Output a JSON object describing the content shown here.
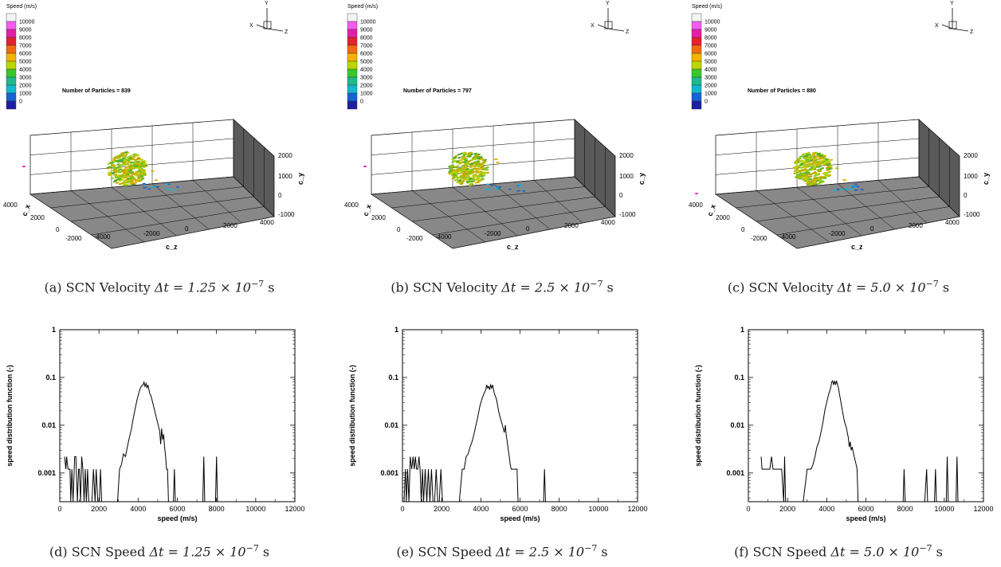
{
  "particle_plots": [
    {
      "legend_title": "Speed (m/s)",
      "legend_ticks": [
        "10000",
        "9000",
        "8000",
        "7000",
        "6000",
        "5000",
        "4000",
        "3000",
        "2000",
        "1000",
        "0"
      ],
      "legend_colors": [
        "#f4f4f4",
        "#f45cf0",
        "#e51fa5",
        "#e5202f",
        "#f46a12",
        "#f4b300",
        "#bcd600",
        "#38c82b",
        "#1fb98b",
        "#12b8d0",
        "#1563d6",
        "#1c1fa4"
      ],
      "number_label": "Number of Particles = 839",
      "axes": {
        "x_title": "c_x",
        "z_title": "c_z",
        "y_title": "c_y",
        "x_ticks": [
          "4000",
          "2000",
          "0",
          "-2000"
        ],
        "z_ticks": [
          "-4000",
          "-2000",
          "0",
          "2000",
          "4000"
        ],
        "y_ticks": [
          "2000",
          "1000",
          "0",
          "-1000"
        ]
      },
      "triad": {
        "x": "X",
        "y": "Y",
        "z": "Z"
      },
      "caption_prefix": "(a) SCN Velocity",
      "caption_math": "Δt = 1.25 × 10",
      "caption_exp": "−7",
      "caption_unit": "s"
    },
    {
      "legend_title": "Speed (m/s)",
      "legend_ticks": [
        "10000",
        "9000",
        "8000",
        "7000",
        "6000",
        "5000",
        "4000",
        "3000",
        "2000",
        "1000",
        "0"
      ],
      "legend_colors": [
        "#f4f4f4",
        "#f45cf0",
        "#e51fa5",
        "#e5202f",
        "#f46a12",
        "#f4b300",
        "#bcd600",
        "#38c82b",
        "#1fb98b",
        "#12b8d0",
        "#1563d6",
        "#1c1fa4"
      ],
      "number_label": "Number of Particles = 797",
      "axes": {
        "x_title": "c_x",
        "z_title": "c_z",
        "y_title": "c_y",
        "x_ticks": [
          "4000",
          "2000",
          "0",
          "-2000"
        ],
        "z_ticks": [
          "-4000",
          "-2000",
          "0",
          "2000",
          "4000"
        ],
        "y_ticks": [
          "2000",
          "1000",
          "0",
          "-1000"
        ]
      },
      "triad": {
        "x": "X",
        "y": "Y",
        "z": "Z"
      },
      "caption_prefix": "(b) SCN Velocity",
      "caption_math": "Δt = 2.5 × 10",
      "caption_exp": "−7",
      "caption_unit": "s"
    },
    {
      "legend_title": "Speed (m/s)",
      "legend_ticks": [
        "10000",
        "9000",
        "8000",
        "7000",
        "6000",
        "5000",
        "4000",
        "3000",
        "2000",
        "1000",
        "0"
      ],
      "legend_colors": [
        "#f4f4f4",
        "#f45cf0",
        "#e51fa5",
        "#e5202f",
        "#f46a12",
        "#f4b300",
        "#bcd600",
        "#38c82b",
        "#1fb98b",
        "#12b8d0",
        "#1563d6",
        "#1c1fa4"
      ],
      "number_label": "Number of Particles = 880",
      "axes": {
        "x_title": "c_x",
        "z_title": "c_z",
        "y_title": "c_y",
        "x_ticks": [
          "4000",
          "2000",
          "0",
          "-2000"
        ],
        "z_ticks": [
          "-4000",
          "-2000",
          "0",
          "2000",
          "4000"
        ],
        "y_ticks": [
          "2000",
          "1000",
          "0",
          "-1000"
        ]
      },
      "triad": {
        "x": "X",
        "y": "Y",
        "z": "Z"
      },
      "caption_prefix": "(c) SCN Velocity",
      "caption_math": "Δt = 5.0 × 10",
      "caption_exp": "−7",
      "caption_unit": "s"
    }
  ],
  "chart_data": [
    {
      "type": "line",
      "xlabel": "speed (m/s)",
      "ylabel": "speed distribution function (-)",
      "xlim": [
        0,
        12000
      ],
      "ylim": [
        0.00025,
        1
      ],
      "y_scale": "log",
      "x_ticks": [
        "0",
        "2000",
        "4000",
        "6000",
        "8000",
        "10000",
        "12000"
      ],
      "y_ticks": [
        "1",
        "0.1",
        "0.01",
        "0.001"
      ],
      "caption_prefix": "(d) SCN Speed",
      "caption_math": "Δt = 1.25 × 10",
      "caption_exp": "−7",
      "caption_unit": "s",
      "series": [
        {
          "x": [
            250,
            310,
            350,
            420,
            520,
            560,
            620,
            680,
            760,
            820,
            900,
            960,
            1000,
            1060,
            1120,
            1180,
            1240,
            1300,
            1360,
            1420,
            1480,
            1560,
            1640,
            1720,
            1800,
            1860,
            1940,
            2020,
            2080,
            2140,
            2200,
            2400,
            2600,
            2800,
            2950,
            3050,
            3150,
            3250,
            3350,
            3450,
            3550,
            3650,
            3750,
            3850,
            3950,
            4050,
            4150,
            4250,
            4300,
            4350,
            4400,
            4450,
            4500,
            4550,
            4600,
            4650,
            4700,
            4800,
            4900,
            5000,
            5100,
            5150,
            5200,
            5250,
            5300,
            5350,
            5400,
            5450,
            5500,
            5550,
            5600,
            5700,
            5800,
            5850,
            5900,
            5950,
            6000,
            6500,
            7000,
            7200,
            7300,
            7350,
            7400,
            7500,
            7800,
            7950,
            8000,
            8050,
            8100,
            8300,
            9000,
            10000,
            11000,
            12000
          ],
          "y": [
            0.0022,
            0.0012,
            0.0022,
            0.0012,
            0.0012,
            0.00025,
            0.0012,
            0.00025,
            0.0022,
            0.0022,
            0.00025,
            0.0012,
            0.0012,
            0.00025,
            0.0022,
            0.0012,
            0.00025,
            0.0012,
            0.00025,
            0.0012,
            0.00025,
            0.00025,
            0.00025,
            0.0012,
            0.00025,
            0.0012,
            0.00025,
            0.00025,
            0.0012,
            0.00025,
            0.00025,
            0.00025,
            0.00025,
            0.00025,
            0.00025,
            0.0012,
            0.0015,
            0.0025,
            0.0022,
            0.0035,
            0.0055,
            0.008,
            0.014,
            0.022,
            0.035,
            0.05,
            0.065,
            0.07,
            0.08,
            0.065,
            0.075,
            0.06,
            0.07,
            0.055,
            0.045,
            0.042,
            0.035,
            0.024,
            0.016,
            0.011,
            0.0075,
            0.004,
            0.0085,
            0.005,
            0.0065,
            0.0035,
            0.0022,
            0.0012,
            0.0012,
            0.00025,
            0.00025,
            0.00025,
            0.00025,
            0.0012,
            0.00025,
            0.00025,
            0.00025,
            0.00025,
            0.00025,
            0.00025,
            0.00025,
            0.0022,
            0.00025,
            0.00025,
            0.00025,
            0.00025,
            0.0022,
            0.00025,
            0.00025,
            0.00025,
            0.00025,
            0.00025,
            0.00025,
            0.00025
          ]
        }
      ]
    },
    {
      "type": "line",
      "xlabel": "speed (m/s)",
      "ylabel": "speed distribution function (-)",
      "xlim": [
        0,
        12000
      ],
      "ylim": [
        0.00025,
        1
      ],
      "y_scale": "log",
      "x_ticks": [
        "0",
        "2000",
        "4000",
        "6000",
        "8000",
        "10000",
        "12000"
      ],
      "y_ticks": [
        "1",
        "0.1",
        "0.01",
        "0.001"
      ],
      "caption_prefix": "(e) SCN Speed",
      "caption_math": "Δt = 2.5 × 10",
      "caption_exp": "−7",
      "caption_unit": "s",
      "series": [
        {
          "x": [
            80,
            150,
            200,
            260,
            330,
            400,
            470,
            540,
            600,
            660,
            720,
            780,
            840,
            900,
            960,
            1020,
            1080,
            1160,
            1240,
            1320,
            1400,
            1480,
            1560,
            1640,
            1720,
            1800,
            1880,
            1960,
            2040,
            2100,
            2160,
            2300,
            2500,
            2700,
            2900,
            3050,
            3150,
            3250,
            3350,
            3450,
            3550,
            3650,
            3750,
            3850,
            3950,
            4050,
            4150,
            4250,
            4300,
            4350,
            4400,
            4450,
            4500,
            4550,
            4600,
            4650,
            4700,
            4800,
            4900,
            5000,
            5100,
            5200,
            5250,
            5300,
            5350,
            5400,
            5450,
            5500,
            5550,
            5600,
            5650,
            5700,
            5750,
            5800,
            5850,
            5900,
            6500,
            7100,
            7200,
            7250,
            7300,
            7400,
            8000,
            9000,
            10000,
            11000,
            12000
          ],
          "y": [
            0.00025,
            0.0012,
            0.00025,
            0.0012,
            0.00025,
            0.0022,
            0.0012,
            0.0022,
            0.0012,
            0.0022,
            0.0012,
            0.0012,
            0.0022,
            0.0012,
            0.00025,
            0.0012,
            0.00025,
            0.0012,
            0.00025,
            0.0012,
            0.00025,
            0.0012,
            0.00025,
            0.00025,
            0.0012,
            0.00025,
            0.00025,
            0.0012,
            0.00025,
            0.00025,
            0.00025,
            0.00025,
            0.00025,
            0.00025,
            0.00025,
            0.0012,
            0.0012,
            0.0022,
            0.0025,
            0.0035,
            0.0045,
            0.0065,
            0.01,
            0.015,
            0.025,
            0.035,
            0.045,
            0.055,
            0.07,
            0.06,
            0.065,
            0.055,
            0.07,
            0.06,
            0.07,
            0.055,
            0.045,
            0.035,
            0.02,
            0.014,
            0.01,
            0.007,
            0.01,
            0.006,
            0.0045,
            0.003,
            0.0022,
            0.0015,
            0.0012,
            0.0012,
            0.0012,
            0.0012,
            0.0012,
            0.0012,
            0.0012,
            0.00025,
            0.00025,
            0.00025,
            0.00025,
            0.0012,
            0.00025,
            0.00025,
            0.00025,
            0.00025,
            0.00025,
            0.00025,
            0.00025
          ]
        }
      ]
    },
    {
      "type": "line",
      "xlabel": "speed (m/s)",
      "ylabel": "speed distribution function (-)",
      "xlim": [
        0,
        12000
      ],
      "ylim": [
        0.00025,
        1
      ],
      "y_scale": "log",
      "x_ticks": [
        "0",
        "2000",
        "4000",
        "6000",
        "8000",
        "10000",
        "12000"
      ],
      "y_ticks": [
        "1",
        "0.1",
        "0.01",
        "0.001"
      ],
      "caption_prefix": "(f) SCN Speed",
      "caption_math": "Δt = 5.0 × 10",
      "caption_exp": "−7",
      "caption_unit": "s",
      "series": [
        {
          "x": [
            650,
            700,
            780,
            860,
            940,
            1020,
            1100,
            1180,
            1260,
            1340,
            1400,
            1460,
            1520,
            1600,
            1700,
            1800,
            1850,
            1900,
            1950,
            2000,
            2400,
            2800,
            3000,
            3100,
            3200,
            3300,
            3400,
            3500,
            3600,
            3700,
            3800,
            3900,
            4000,
            4100,
            4200,
            4250,
            4300,
            4350,
            4400,
            4450,
            4500,
            4550,
            4600,
            4650,
            4700,
            4800,
            4900,
            5000,
            5100,
            5150,
            5200,
            5250,
            5300,
            5400,
            5500,
            5550,
            5600,
            6000,
            7000,
            7900,
            7950,
            8000,
            8100,
            9000,
            9100,
            9150,
            9200,
            9300,
            9500,
            9550,
            9600,
            9700,
            10100,
            10150,
            10200,
            10300,
            10600,
            10650,
            10700,
            10800,
            11500,
            12000
          ],
          "y": [
            0.0022,
            0.0012,
            0.0012,
            0.0012,
            0.0012,
            0.0012,
            0.0012,
            0.0022,
            0.0012,
            0.0012,
            0.0012,
            0.0012,
            0.0012,
            0.0012,
            0.0012,
            0.00025,
            0.0022,
            0.00025,
            0.00025,
            0.00025,
            0.00025,
            0.00025,
            0.0012,
            0.0012,
            0.0012,
            0.0015,
            0.0022,
            0.0035,
            0.0045,
            0.007,
            0.011,
            0.02,
            0.03,
            0.045,
            0.06,
            0.08,
            0.085,
            0.07,
            0.085,
            0.07,
            0.085,
            0.07,
            0.06,
            0.045,
            0.035,
            0.02,
            0.012,
            0.009,
            0.0055,
            0.0035,
            0.0045,
            0.003,
            0.0035,
            0.0022,
            0.0015,
            0.0012,
            0.00025,
            0.00025,
            0.00025,
            0.00025,
            0.0012,
            0.00025,
            0.00025,
            0.00025,
            0.0012,
            0.00025,
            0.00025,
            0.00025,
            0.00025,
            0.0012,
            0.00025,
            0.00025,
            0.00025,
            0.0022,
            0.00025,
            0.00025,
            0.00025,
            0.0022,
            0.00025,
            0.00025,
            0.00025,
            0.00025
          ]
        }
      ]
    }
  ]
}
